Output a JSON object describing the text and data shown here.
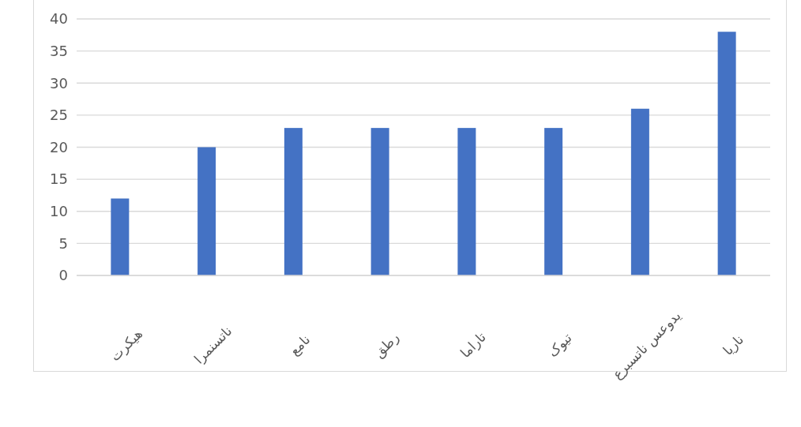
{
  "chart_data": {
    "type": "bar",
    "categories": [
      "هیکرت",
      "ناتسنمرا",
      "نامع",
      "رطق",
      "تاراما",
      "تیوک",
      "یدوعس ناتسبرع",
      "ناریا"
    ],
    "values": [
      12,
      20,
      23,
      23,
      23,
      23,
      26,
      38
    ],
    "color": "#4472c4",
    "ylim": [
      0,
      40
    ],
    "yticks": [
      0,
      5,
      10,
      15,
      20,
      25,
      30,
      35,
      40
    ],
    "grid": "y"
  }
}
